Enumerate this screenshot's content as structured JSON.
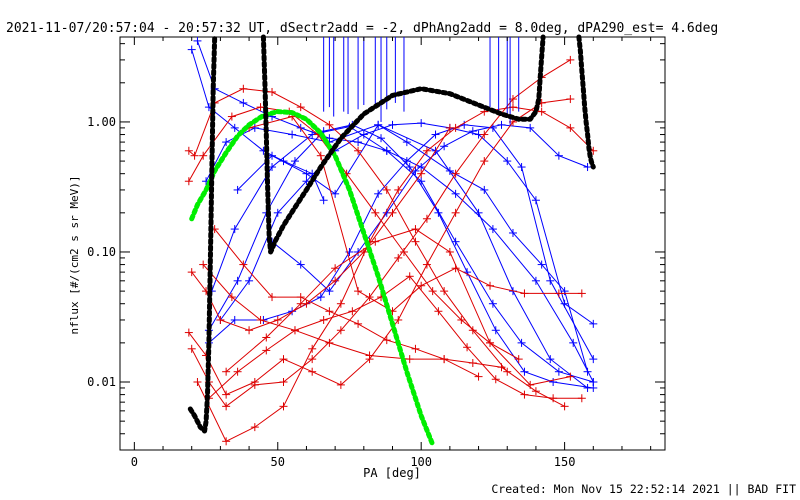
{
  "chart_data": {
    "type": "line",
    "title": "2021-11-07/20:57:04 - 20:57:32 UT, dSectr2add = -2, dPhAng2add = 8.0deg, dPA290_est=  4.6deg",
    "xlabel": "PA [deg]",
    "ylabel": "nflux [#/(cm2 s sr MeV)]",
    "xlim": [
      -5,
      185
    ],
    "ylim": [
      0.003,
      4.5
    ],
    "yscale": "log",
    "x_ticks": [
      0,
      50,
      100,
      150
    ],
    "x_tick_labels": [
      "0",
      "50",
      "100",
      "150"
    ],
    "y_ticks": [
      0.01,
      0.1,
      1.0
    ],
    "y_tick_labels": [
      "0.01",
      "0.10",
      "1.00"
    ],
    "grid": false,
    "footer": "Created: Mon Nov 15 22:52:14 2021 || BAD FIT",
    "colors": {
      "blue": "#0000ff",
      "red": "#dd0000",
      "black": "#000000",
      "green": "#00ee00"
    },
    "series": [
      {
        "color": "blue",
        "marker": "plus",
        "x": [
          20,
          26,
          35,
          45,
          52,
          62,
          66
        ],
        "y": [
          3.6,
          1.3,
          0.9,
          0.6,
          0.5,
          0.4,
          0.25
        ]
      },
      {
        "color": "blue",
        "marker": "plus",
        "x": [
          22,
          28,
          38,
          48,
          58,
          68,
          78,
          88,
          100,
          112,
          125,
          140,
          153,
          160
        ],
        "y": [
          4.2,
          1.8,
          1.4,
          1.1,
          0.9,
          0.75,
          0.7,
          0.6,
          0.45,
          0.28,
          0.15,
          0.06,
          0.02,
          0.01
        ]
      },
      {
        "color": "blue",
        "marker": "plus",
        "x": [
          25,
          32,
          42,
          55,
          68,
          85,
          105,
          120,
          132,
          145,
          158
        ],
        "y": [
          0.35,
          0.7,
          0.9,
          0.8,
          0.7,
          0.95,
          0.6,
          0.2,
          0.05,
          0.015,
          0.009
        ]
      },
      {
        "color": "blue",
        "marker": "plus",
        "x": [
          27,
          35,
          48,
          62,
          75,
          88,
          100,
          112,
          125,
          135,
          148,
          160
        ],
        "y": [
          0.05,
          0.15,
          0.45,
          0.8,
          0.92,
          0.6,
          0.35,
          0.12,
          0.04,
          0.02,
          0.012,
          0.01
        ]
      },
      {
        "color": "blue",
        "marker": "plus",
        "x": [
          26,
          36,
          46,
          56,
          66,
          76,
          86,
          96,
          106,
          116,
          126,
          136,
          146,
          160
        ],
        "y": [
          0.025,
          0.06,
          0.2,
          0.5,
          0.85,
          0.95,
          0.75,
          0.45,
          0.2,
          0.07,
          0.025,
          0.012,
          0.01,
          0.009
        ]
      },
      {
        "color": "blue",
        "marker": "plus",
        "x": [
          26,
          35,
          45,
          55,
          65,
          75,
          85,
          95,
          105,
          115,
          125,
          135,
          145,
          160
        ],
        "y": [
          0.02,
          0.03,
          0.03,
          0.035,
          0.045,
          0.1,
          0.28,
          0.5,
          0.8,
          0.95,
          0.9,
          0.45,
          0.06,
          0.015
        ]
      },
      {
        "color": "blue",
        "marker": "plus",
        "x": [
          30,
          40,
          50,
          60,
          70,
          80,
          90,
          100,
          110,
          120,
          130,
          140,
          150,
          160
        ],
        "y": [
          0.03,
          0.06,
          0.2,
          0.35,
          0.6,
          0.8,
          0.95,
          0.98,
          0.9,
          0.8,
          0.5,
          0.25,
          0.04,
          0.028
        ]
      },
      {
        "color": "blue",
        "marker": "plus",
        "x": [
          48,
          58,
          68,
          78,
          88,
          98,
          108,
          118,
          128,
          138,
          148,
          158
        ],
        "y": [
          0.12,
          0.08,
          0.05,
          0.1,
          0.2,
          0.42,
          0.65,
          0.85,
          0.95,
          0.9,
          0.55,
          0.45
        ]
      },
      {
        "color": "blue",
        "marker": "plus",
        "x": [
          36,
          48,
          60,
          70,
          85,
          95,
          110,
          122,
          132,
          142,
          150,
          158
        ],
        "y": [
          0.3,
          0.55,
          0.4,
          0.28,
          0.95,
          0.7,
          0.42,
          0.3,
          0.14,
          0.08,
          0.05,
          0.012
        ]
      },
      {
        "color": "red",
        "marker": "plus",
        "x": [
          19,
          21,
          28,
          38,
          48,
          58,
          68,
          78,
          88,
          98,
          108,
          118,
          130
        ],
        "y": [
          0.6,
          0.55,
          1.4,
          1.8,
          1.7,
          1.3,
          0.95,
          0.6,
          0.3,
          0.12,
          0.05,
          0.025,
          0.012
        ]
      },
      {
        "color": "red",
        "marker": "plus",
        "x": [
          19,
          24,
          34,
          44,
          54,
          64,
          74,
          84,
          94,
          104,
          114,
          124,
          134
        ],
        "y": [
          0.35,
          0.55,
          1.1,
          1.3,
          1.2,
          0.8,
          0.4,
          0.2,
          0.1,
          0.05,
          0.03,
          0.02,
          0.015
        ]
      },
      {
        "color": "red",
        "marker": "plus",
        "x": [
          20,
          25,
          30,
          40,
          50,
          60,
          70,
          80,
          90,
          100,
          110
        ],
        "y": [
          0.07,
          0.05,
          0.03,
          0.025,
          0.03,
          0.04,
          0.06,
          0.1,
          0.2,
          0.4,
          0.9
        ]
      },
      {
        "color": "red",
        "marker": "plus",
        "x": [
          19,
          25,
          32,
          42,
          52,
          62,
          72,
          82,
          92,
          102,
          112,
          122,
          132,
          142,
          152
        ],
        "y": [
          0.024,
          0.016,
          0.008,
          0.01,
          0.015,
          0.012,
          0.0095,
          0.015,
          0.03,
          0.08,
          0.2,
          0.5,
          1.0,
          1.4,
          1.5
        ]
      },
      {
        "color": "red",
        "marker": "plus",
        "x": [
          20,
          26,
          32,
          42,
          52,
          62,
          72,
          82,
          92,
          102,
          112,
          122,
          132,
          142,
          152
        ],
        "y": [
          0.018,
          0.01,
          0.0065,
          0.0095,
          0.01,
          0.015,
          0.025,
          0.045,
          0.09,
          0.18,
          0.4,
          0.8,
          1.5,
          2.2,
          3.0
        ]
      },
      {
        "color": "red",
        "marker": "plus",
        "x": [
          22,
          32,
          42,
          52,
          62,
          72,
          82,
          92,
          102,
          112,
          122,
          132,
          142,
          152,
          160
        ],
        "y": [
          0.01,
          0.0035,
          0.0045,
          0.0065,
          0.018,
          0.04,
          0.12,
          0.3,
          0.6,
          0.9,
          1.2,
          1.3,
          1.2,
          0.9,
          0.6
        ]
      },
      {
        "color": "red",
        "marker": "plus",
        "x": [
          28,
          38,
          48,
          58,
          68,
          78,
          88,
          98,
          108,
          118,
          128,
          140,
          150
        ],
        "y": [
          0.15,
          0.08,
          0.045,
          0.045,
          0.035,
          0.028,
          0.021,
          0.018,
          0.015,
          0.014,
          0.013,
          0.0085,
          0.0065
        ]
      },
      {
        "color": "red",
        "marker": "plus",
        "x": [
          26,
          36,
          46,
          56,
          66,
          76,
          86,
          96,
          106,
          116,
          126,
          136,
          146,
          156
        ],
        "y": [
          0.0075,
          0.012,
          0.0175,
          0.025,
          0.03,
          0.035,
          0.045,
          0.065,
          0.035,
          0.0185,
          0.0105,
          0.008,
          0.0075,
          0.0075
        ]
      },
      {
        "color": "red",
        "marker": "plus",
        "x": [
          40,
          55,
          65,
          78,
          90,
          100,
          112,
          124,
          136,
          148,
          156
        ],
        "y": [
          0.9,
          1.1,
          0.55,
          0.05,
          0.035,
          0.055,
          0.075,
          0.055,
          0.048,
          0.048,
          0.048
        ]
      },
      {
        "color": "red",
        "marker": "plus",
        "x": [
          24,
          34,
          44,
          56,
          68,
          82,
          96,
          108,
          120
        ],
        "y": [
          0.08,
          0.045,
          0.03,
          0.025,
          0.02,
          0.016,
          0.015,
          0.015,
          0.011
        ]
      },
      {
        "color": "red",
        "marker": "plus",
        "x": [
          32,
          46,
          58,
          70,
          84,
          98,
          110,
          124,
          138,
          152
        ],
        "y": [
          0.012,
          0.022,
          0.04,
          0.075,
          0.12,
          0.15,
          0.1,
          0.02,
          0.0095,
          0.011
        ]
      }
    ],
    "spikes": [
      {
        "x": 66,
        "y_from": 1.2
      },
      {
        "x": 68,
        "y_from": 1.3
      },
      {
        "x": 69.5,
        "y_from": 1.1
      },
      {
        "x": 73,
        "y_from": 1.2
      },
      {
        "x": 74.5,
        "y_from": 1.15
      },
      {
        "x": 78,
        "y_from": 1.25
      },
      {
        "x": 80,
        "y_from": 1.35
      },
      {
        "x": 84,
        "y_from": 1.3
      },
      {
        "x": 86,
        "y_from": 1.0
      },
      {
        "x": 88,
        "y_from": 1.25
      },
      {
        "x": 91,
        "y_from": 1.4
      },
      {
        "x": 94,
        "y_from": 1.2
      },
      {
        "x": 124,
        "y_from": 1.3
      },
      {
        "x": 127,
        "y_from": 1.2
      },
      {
        "x": 130,
        "y_from": 1.1
      },
      {
        "x": 131,
        "y_from": 0.95
      },
      {
        "x": 134,
        "y_from": 1.2
      }
    ],
    "fits": [
      {
        "color": "green",
        "x": [
          20,
          22,
          25,
          28,
          32,
          36,
          40,
          45,
          50,
          55,
          60,
          65,
          70,
          75,
          80,
          85,
          90,
          95,
          100,
          104
        ],
        "y": [
          0.18,
          0.23,
          0.3,
          0.42,
          0.58,
          0.78,
          0.95,
          1.12,
          1.2,
          1.18,
          1.05,
          0.82,
          0.55,
          0.3,
          0.14,
          0.065,
          0.028,
          0.012,
          0.0055,
          0.0033
        ]
      },
      {
        "color": "black",
        "x": [
          19.5,
          21,
          23,
          24.5,
          25,
          25.5,
          26,
          26.5,
          27,
          27.5,
          28
        ],
        "y": [
          0.0062,
          0.0055,
          0.0045,
          0.0042,
          0.005,
          0.008,
          0.02,
          0.09,
          0.4,
          1.8,
          4.5
        ]
      },
      {
        "color": "black",
        "x": [
          45,
          45.5,
          46,
          46.5,
          47,
          47.5,
          48,
          49,
          52,
          56,
          60,
          65,
          72,
          80,
          90,
          100,
          110,
          120,
          128,
          134,
          138,
          140,
          141,
          141.5,
          142,
          142.5
        ],
        "y": [
          4.5,
          2.0,
          0.8,
          0.3,
          0.13,
          0.1,
          0.105,
          0.12,
          0.16,
          0.22,
          0.3,
          0.45,
          0.75,
          1.15,
          1.6,
          1.8,
          1.65,
          1.35,
          1.15,
          1.05,
          1.05,
          1.2,
          1.5,
          2.2,
          3.2,
          4.5
        ]
      },
      {
        "color": "black",
        "x": [
          155,
          155.5,
          156,
          156.5,
          157,
          157.5,
          158,
          158.5,
          159,
          159.5,
          160
        ],
        "y": [
          4.5,
          3.5,
          2.5,
          1.8,
          1.3,
          1.0,
          0.8,
          0.62,
          0.53,
          0.48,
          0.45
        ]
      }
    ]
  }
}
